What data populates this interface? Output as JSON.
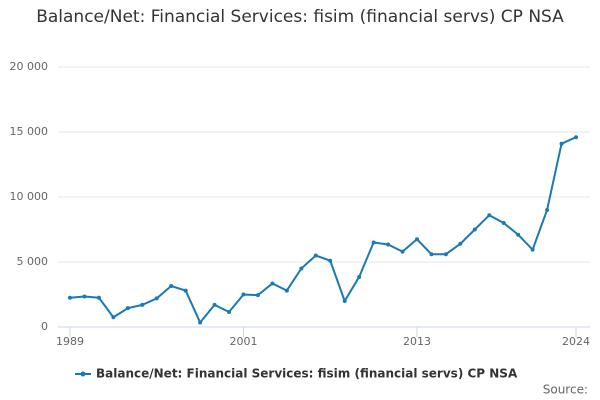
{
  "chart_data": {
    "type": "line",
    "title": "Balance/Net: Financial Services: fisim (financial servs) CP NSA",
    "source": "Source:",
    "x": [
      1989,
      1990,
      1991,
      1992,
      1993,
      1994,
      1995,
      1996,
      1997,
      1998,
      1999,
      2000,
      2001,
      2002,
      2003,
      2004,
      2005,
      2006,
      2007,
      2008,
      2009,
      2010,
      2011,
      2012,
      2013,
      2014,
      2015,
      2016,
      2017,
      2018,
      2019,
      2020,
      2021,
      2022,
      2023,
      2024
    ],
    "series": [
      {
        "name": "Balance/Net: Financial Services: fisim (financial servs) CP NSA",
        "color": "#1a7ab5",
        "values": [
          2250,
          2350,
          2250,
          750,
          1450,
          1700,
          2200,
          3150,
          2800,
          350,
          1700,
          1150,
          2500,
          2450,
          3350,
          2800,
          4500,
          5500,
          5100,
          2000,
          3850,
          6500,
          6350,
          5800,
          6750,
          5600,
          5600,
          6400,
          7500,
          8600,
          8000,
          7100,
          5950,
          9000,
          14100,
          14600
        ]
      }
    ],
    "xlim": [
      1989,
      2024
    ],
    "xticks": [
      1989,
      2001,
      2013,
      2024
    ],
    "ylim": [
      0,
      20000
    ],
    "yticks": [
      0,
      {
        "value": 5000,
        "label": "5 000"
      },
      {
        "value": 10000,
        "label": "10 000"
      },
      {
        "value": 15000,
        "label": "15 000"
      },
      {
        "value": 20000,
        "label": "20 000"
      }
    ],
    "grid": true,
    "legend": "bottom"
  }
}
